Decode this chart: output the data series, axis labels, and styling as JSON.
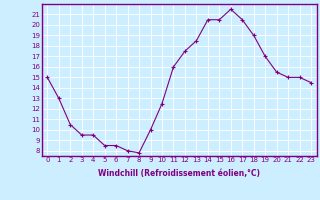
{
  "x": [
    0,
    1,
    2,
    3,
    4,
    5,
    6,
    7,
    8,
    9,
    10,
    11,
    12,
    13,
    14,
    15,
    16,
    17,
    18,
    19,
    20,
    21,
    22,
    23
  ],
  "y": [
    15,
    13,
    10.5,
    9.5,
    9.5,
    8.5,
    8.5,
    8,
    7.8,
    10,
    12.5,
    16,
    17.5,
    18.5,
    20.5,
    20.5,
    21.5,
    20.5,
    19,
    17,
    15.5,
    15,
    15,
    14.5
  ],
  "line_color": "#800080",
  "marker": "+",
  "xlabel": "Windchill (Refroidissement éolien,°C)",
  "ylabel_ticks": [
    8,
    9,
    10,
    11,
    12,
    13,
    14,
    15,
    16,
    17,
    18,
    19,
    20,
    21
  ],
  "ylim": [
    7.5,
    22
  ],
  "xlim": [
    -0.5,
    23.5
  ],
  "bg_color": "#cceeff",
  "grid_color": "#aaddcc",
  "spine_color": "#800080",
  "font_color": "#800080",
  "tick_fontsize": 5,
  "xlabel_fontsize": 5.5
}
